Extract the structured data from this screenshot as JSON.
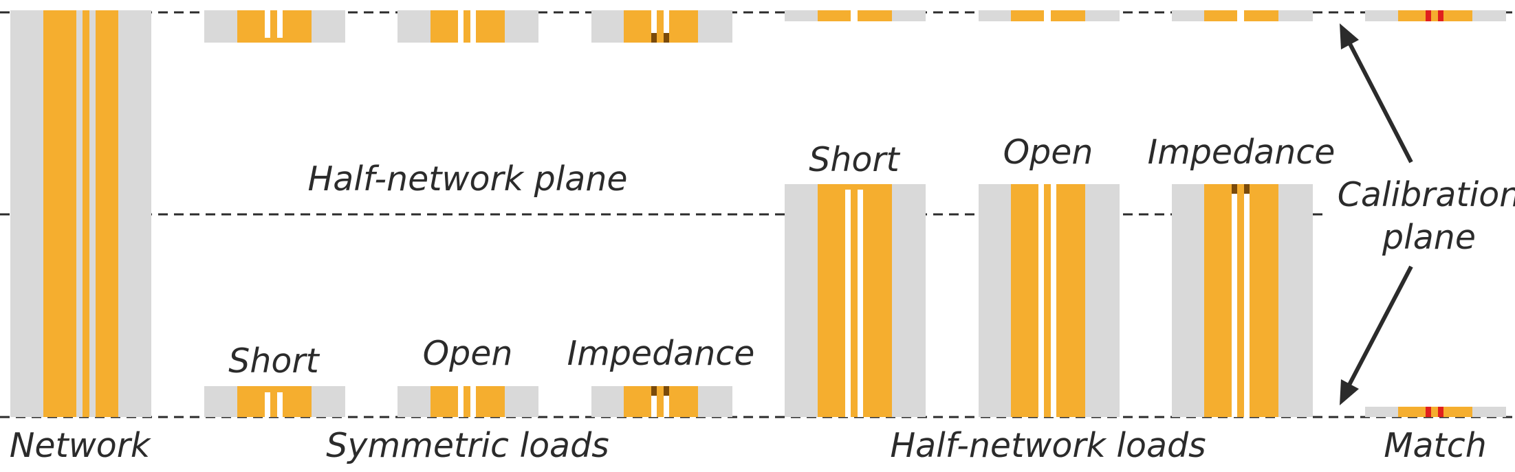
{
  "colors": {
    "substrate": "#d9d9d9",
    "conductor": "#f5ae2f",
    "impedance": "#7a4a0a",
    "match_resistor": "#e0201e",
    "line": "#2b2b2b",
    "background": "#ffffff"
  },
  "labels": {
    "half_network_plane": "Half-network plane",
    "calibration_plane": [
      "Calibration",
      "plane"
    ],
    "network": "Network",
    "symmetric_loads": "Symmetric loads",
    "half_network_loads": "Half-network loads",
    "match": "Match"
  },
  "symmetric_loads": [
    {
      "name": "Short",
      "type": "short"
    },
    {
      "name": "Open",
      "type": "open"
    },
    {
      "name": "Impedance",
      "type": "impedance"
    }
  ],
  "half_network_loads": [
    {
      "name": "Short",
      "type": "short"
    },
    {
      "name": "Open",
      "type": "open"
    },
    {
      "name": "Impedance",
      "type": "impedance"
    }
  ],
  "top_row_types": [
    "short",
    "open",
    "impedance",
    "short",
    "open",
    "impedance",
    "match"
  ]
}
